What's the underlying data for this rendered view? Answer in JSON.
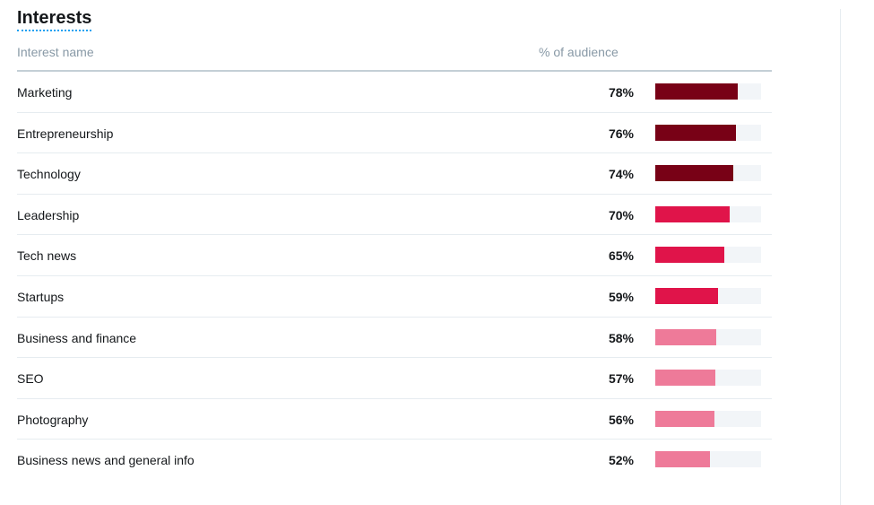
{
  "section": {
    "title": "Interests"
  },
  "table": {
    "col_name": "Interest name",
    "col_pct": "% of audience",
    "rows": [
      {
        "name": "Marketing",
        "pct_label": "78%",
        "value": 78,
        "color": "#780116"
      },
      {
        "name": "Entrepreneurship",
        "pct_label": "76%",
        "value": 76,
        "color": "#780116"
      },
      {
        "name": "Technology",
        "pct_label": "74%",
        "value": 74,
        "color": "#780116"
      },
      {
        "name": "Leadership",
        "pct_label": "70%",
        "value": 70,
        "color": "#e0144a"
      },
      {
        "name": "Tech news",
        "pct_label": "65%",
        "value": 65,
        "color": "#e0144a"
      },
      {
        "name": "Startups",
        "pct_label": "59%",
        "value": 59,
        "color": "#e0144a"
      },
      {
        "name": "Business and finance",
        "pct_label": "58%",
        "value": 58,
        "color": "#ee7a99"
      },
      {
        "name": "SEO",
        "pct_label": "57%",
        "value": 57,
        "color": "#ee7a99"
      },
      {
        "name": "Photography",
        "pct_label": "56%",
        "value": 56,
        "color": "#ee7a99"
      },
      {
        "name": "Business news and general info",
        "pct_label": "52%",
        "value": 52,
        "color": "#ee7a99"
      }
    ]
  },
  "colors": {
    "title_underline": "#1da1f2",
    "track": "#f2f5f8"
  }
}
